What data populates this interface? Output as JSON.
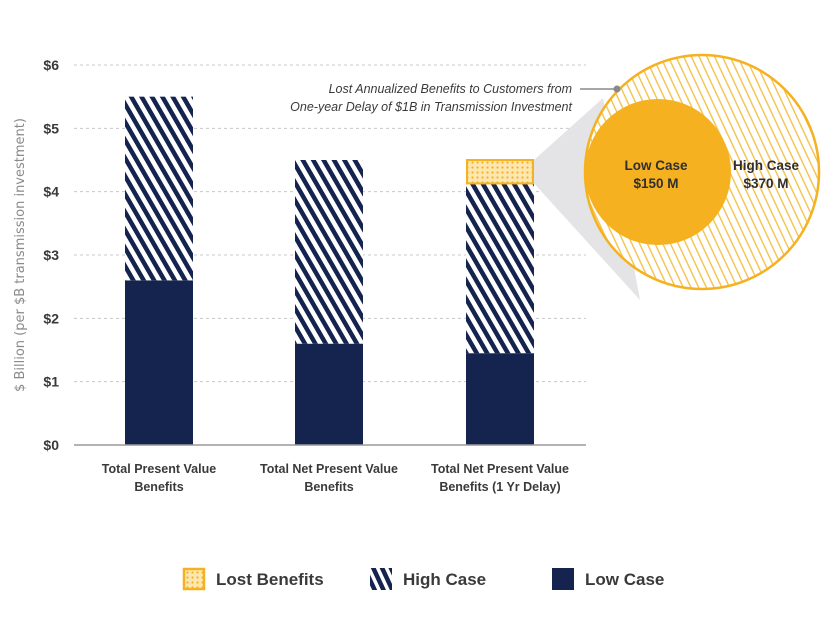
{
  "chart_data": {
    "type": "bar",
    "stacked": true,
    "ylabel": "$ Billion (per $B transmission investment)",
    "xlabel": "",
    "ylim": [
      0,
      6
    ],
    "yticks": [
      0,
      1,
      2,
      3,
      4,
      5,
      6
    ],
    "ytick_labels": [
      "$0",
      "$1",
      "$2",
      "$3",
      "$4",
      "$5",
      "$6"
    ],
    "grid": true,
    "categories": [
      [
        "Total Present Value",
        "Benefits"
      ],
      [
        "Total Net Present Value",
        "Benefits"
      ],
      [
        "Total Net Present Value",
        "Benefits (1 Yr Delay)"
      ]
    ],
    "series": [
      {
        "name": "Low Case",
        "key": "low",
        "values": [
          2.6,
          1.6,
          1.45
        ],
        "color": "#14244f"
      },
      {
        "name": "High Case",
        "key": "high",
        "values": [
          2.9,
          2.9,
          2.68
        ],
        "color": "#14244f",
        "pattern": "diagonal-stripes"
      },
      {
        "name": "Lost Benefits",
        "key": "lost",
        "values": [
          0,
          0,
          0.37
        ],
        "color": "#f5b120",
        "pattern": "dots"
      }
    ],
    "annotation": {
      "lines": [
        "Lost Annualized Benefits to Customers from",
        "One-year Delay of $1B in Transmission Investment"
      ],
      "low_case": {
        "label": "Low Case",
        "value": "$150 M"
      },
      "high_case": {
        "label": "High Case",
        "value": "$370 M"
      }
    },
    "legend": {
      "position": "bottom",
      "items": [
        {
          "label": "Lost Benefits",
          "key": "lost"
        },
        {
          "label": "High Case",
          "key": "high"
        },
        {
          "label": "Low Case",
          "key": "low"
        }
      ]
    }
  },
  "colors": {
    "navy": "#14244f",
    "gold": "#f5b120",
    "grid": "#c8c8c8",
    "axis": "#9a9a9a",
    "wedge": "#e4e4e6",
    "leader": "#8a8a8c"
  }
}
